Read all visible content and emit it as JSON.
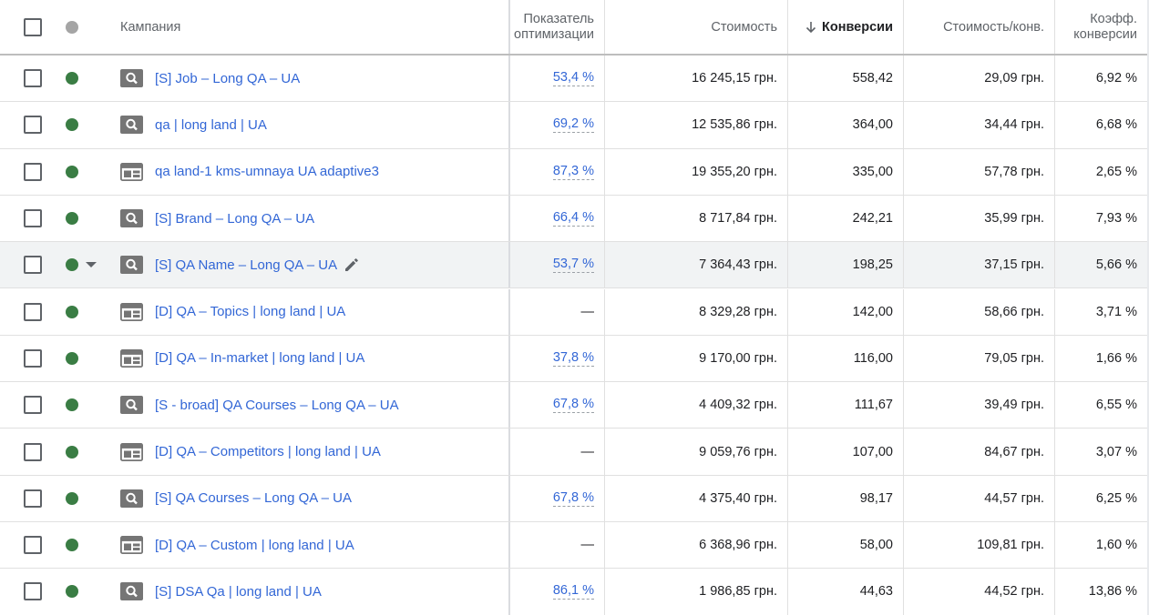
{
  "header": {
    "campaign": "Кампания",
    "optimization_line1": "Показатель",
    "optimization_line2": "оптимизации",
    "cost": "Стоимость",
    "conversions": "Конверсии",
    "cost_per_conv": "Стоимость/конв.",
    "conv_rate_line1": "Коэфф.",
    "conv_rate_line2": "конверсии",
    "sort_icon": "arrow-down-icon"
  },
  "colors": {
    "status_enabled": "#3a7d44",
    "link": "#3367d6",
    "row_highlight": "#f1f3f4"
  },
  "rows": [
    {
      "type": "search",
      "name": "[S] Job – Long QA – UA",
      "opt": "53,4 %",
      "cost": "16 245,15 грн.",
      "conv": "558,42",
      "cpc": "29,09 грн.",
      "rate": "6,92 %"
    },
    {
      "type": "search",
      "name": "qa | long land | UA",
      "opt": "69,2 %",
      "cost": "12 535,86 грн.",
      "conv": "364,00",
      "cpc": "34,44 грн.",
      "rate": "6,68 %"
    },
    {
      "type": "display",
      "name": "qa land-1 kms-umnaya UA adaptive3",
      "opt": "87,3 %",
      "cost": "19 355,20 грн.",
      "conv": "335,00",
      "cpc": "57,78 грн.",
      "rate": "2,65 %"
    },
    {
      "type": "search",
      "name": "[S] Brand – Long QA – UA",
      "opt": "66,4 %",
      "cost": "8 717,84 грн.",
      "conv": "242,21",
      "cpc": "35,99 грн.",
      "rate": "7,93 %"
    },
    {
      "type": "search",
      "name": "[S] QA Name – Long QA – UA",
      "opt": "53,7 %",
      "cost": "7 364,43 грн.",
      "conv": "198,25",
      "cpc": "37,15 грн.",
      "rate": "5,66 %",
      "highlight": true
    },
    {
      "type": "display",
      "name": "[D] QA – Topics | long land | UA",
      "opt": "—",
      "cost": "8 329,28 грн.",
      "conv": "142,00",
      "cpc": "58,66 грн.",
      "rate": "3,71 %"
    },
    {
      "type": "display",
      "name": "[D] QA – In-market | long land | UA",
      "opt": "37,8 %",
      "cost": "9 170,00 грн.",
      "conv": "116,00",
      "cpc": "79,05 грн.",
      "rate": "1,66 %"
    },
    {
      "type": "search",
      "name": "[S - broad] QA Courses – Long QA – UA",
      "opt": "67,8 %",
      "cost": "4 409,32 грн.",
      "conv": "111,67",
      "cpc": "39,49 грн.",
      "rate": "6,55 %"
    },
    {
      "type": "display",
      "name": "[D] QA – Competitors | long land | UA",
      "opt": "—",
      "cost": "9 059,76 грн.",
      "conv": "107,00",
      "cpc": "84,67 грн.",
      "rate": "3,07 %"
    },
    {
      "type": "search",
      "name": "[S] QA Courses – Long QA – UA",
      "opt": "67,8 %",
      "cost": "4 375,40 грн.",
      "conv": "98,17",
      "cpc": "44,57 грн.",
      "rate": "6,25 %"
    },
    {
      "type": "display",
      "name": "[D] QA – Custom | long land | UA",
      "opt": "—",
      "cost": "6 368,96 грн.",
      "conv": "58,00",
      "cpc": "109,81 грн.",
      "rate": "1,60 %"
    },
    {
      "type": "search",
      "name": "[S] DSA Qa | long land | UA",
      "opt": "86,1 %",
      "cost": "1 986,85 грн.",
      "conv": "44,63",
      "cpc": "44,52 грн.",
      "rate": "13,86 %"
    }
  ]
}
